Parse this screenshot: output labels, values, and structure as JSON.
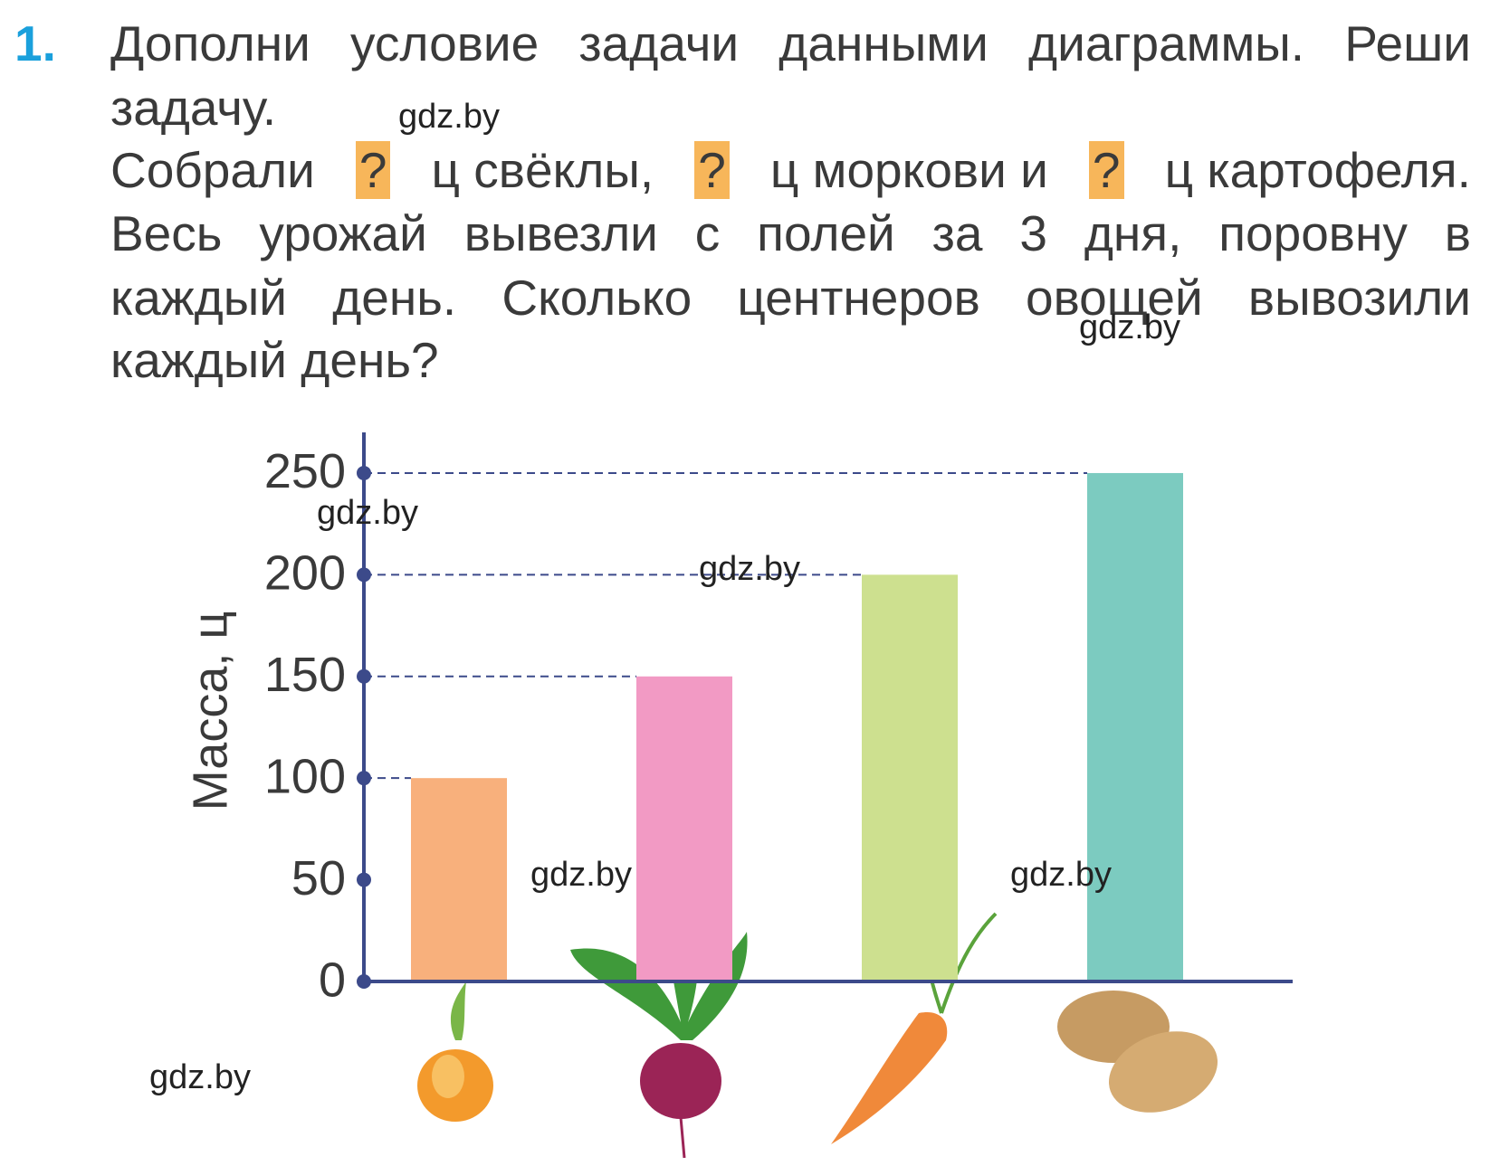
{
  "task": {
    "number": "1.",
    "lines": [
      [
        "Дополни условие задачи данными диаграммы. Реши"
      ],
      [
        "задачу."
      ],
      [
        "Собрали",
        "?",
        "ц свёклы,",
        "?",
        "ц моркови и",
        "?",
        "ц картофеля."
      ],
      [
        "Весь урожай вывезли с полей за 3 дня, поровну в"
      ],
      [
        "каждый день. Сколько центнеров овощей вывозили"
      ],
      [
        "каждый день?"
      ]
    ]
  },
  "watermarks": [
    "gdz.by",
    "gdz.by",
    "gdz.by",
    "gdz.by",
    "gdz.by",
    "gdz.by",
    "gdz.by"
  ],
  "chart_data": {
    "type": "bar",
    "ylabel": "Масса, ц",
    "categories": [
      null,
      null,
      null,
      null
    ],
    "values": [
      100,
      150,
      200,
      250
    ],
    "colors": [
      "#f8b07c",
      "#f29ac4",
      "#cde08f",
      "#7ccbc0"
    ],
    "ylim": [
      0,
      270
    ],
    "yticks": [
      0,
      50,
      100,
      150,
      200,
      250
    ]
  }
}
